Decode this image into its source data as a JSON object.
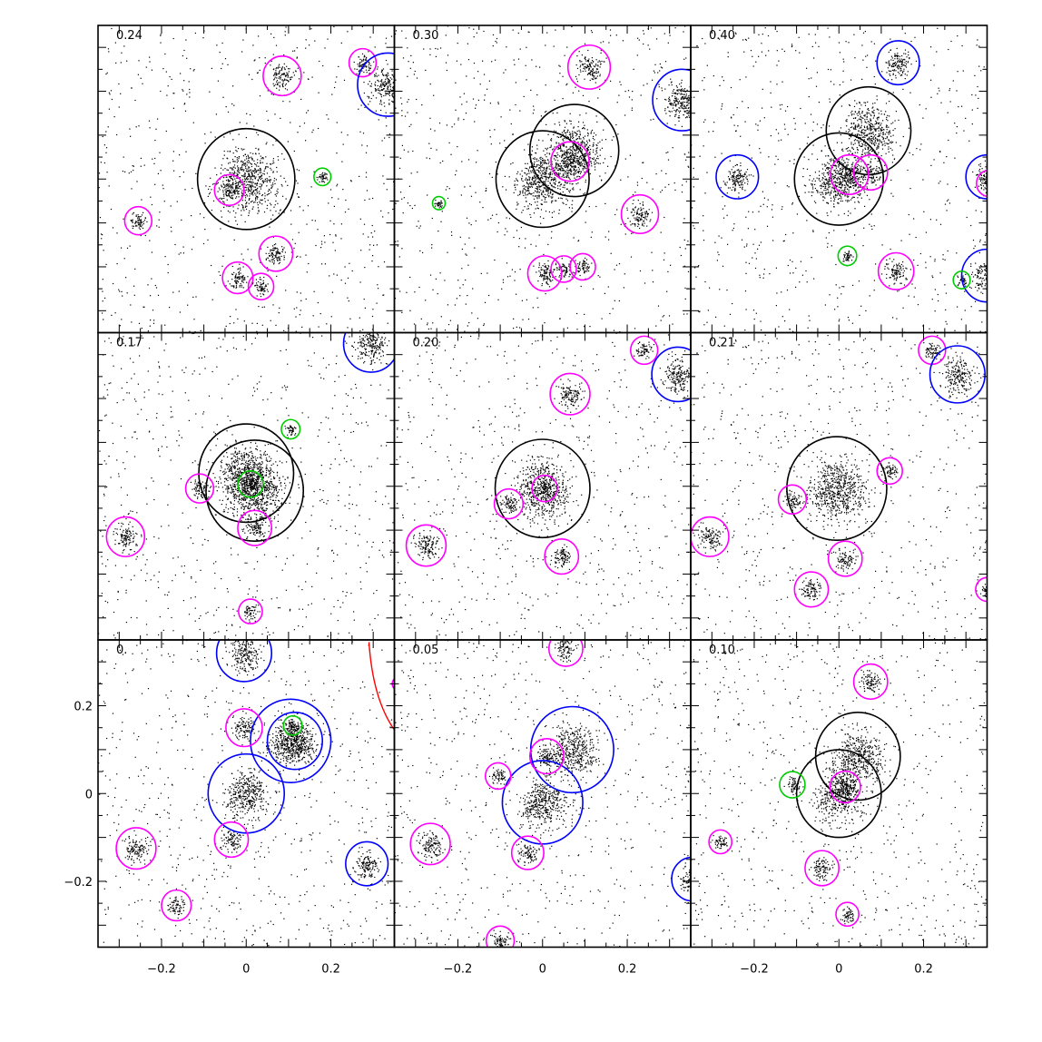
{
  "chart_data": {
    "type": "scatter",
    "layout": {
      "rows": 3,
      "cols": 3
    },
    "xlim": [
      -0.35,
      0.35
    ],
    "ylim": [
      -0.35,
      0.35
    ],
    "x_ticks": [
      -0.2,
      0,
      0.2
    ],
    "x_tick_labels": [
      "−0.2",
      "0",
      "0.2"
    ],
    "y_ticks": [
      -0.2,
      0,
      0.2
    ],
    "y_tick_labels": [
      "−0.2",
      "0",
      "0.2"
    ],
    "colors": {
      "black": "#000000",
      "magenta": "#ff00ff",
      "blue": "#0000ff",
      "green": "#00cc00",
      "red": "#ff0000"
    },
    "panels": [
      {
        "label": "0.24",
        "clumps": [
          {
            "x": 0,
            "y": 0,
            "r": 0.115,
            "color": "black"
          },
          {
            "x": -0.04,
            "y": -0.025,
            "r": 0.035,
            "color": "magenta"
          },
          {
            "x": 0.18,
            "y": 0.005,
            "r": 0.02,
            "color": "green"
          },
          {
            "x": 0.085,
            "y": 0.235,
            "r": 0.045,
            "color": "magenta"
          },
          {
            "x": 0.275,
            "y": 0.265,
            "r": 0.032,
            "color": "magenta"
          },
          {
            "x": 0.335,
            "y": 0.215,
            "r": 0.072,
            "color": "blue"
          },
          {
            "x": -0.255,
            "y": -0.095,
            "r": 0.032,
            "color": "magenta"
          },
          {
            "x": 0.07,
            "y": -0.17,
            "r": 0.04,
            "color": "magenta"
          },
          {
            "x": -0.02,
            "y": -0.225,
            "r": 0.036,
            "color": "magenta"
          },
          {
            "x": 0.035,
            "y": -0.245,
            "r": 0.03,
            "color": "magenta"
          }
        ]
      },
      {
        "label": "0.30",
        "clumps": [
          {
            "x": 0,
            "y": 0,
            "r": 0.11,
            "color": "black"
          },
          {
            "x": 0.075,
            "y": 0.065,
            "r": 0.105,
            "color": "black"
          },
          {
            "x": 0.065,
            "y": 0.04,
            "r": 0.045,
            "color": "magenta"
          },
          {
            "x": -0.245,
            "y": -0.055,
            "r": 0.015,
            "color": "green"
          },
          {
            "x": 0.11,
            "y": 0.255,
            "r": 0.05,
            "color": "magenta"
          },
          {
            "x": 0.33,
            "y": 0.18,
            "r": 0.07,
            "color": "blue"
          },
          {
            "x": 0.23,
            "y": -0.08,
            "r": 0.044,
            "color": "magenta"
          },
          {
            "x": 0.005,
            "y": -0.215,
            "r": 0.04,
            "color": "magenta"
          },
          {
            "x": 0.05,
            "y": -0.205,
            "r": 0.03,
            "color": "magenta"
          },
          {
            "x": 0.095,
            "y": -0.2,
            "r": 0.03,
            "color": "magenta"
          }
        ]
      },
      {
        "label": "0.40",
        "clumps": [
          {
            "x": 0,
            "y": 0,
            "r": 0.105,
            "color": "black"
          },
          {
            "x": 0.07,
            "y": 0.11,
            "r": 0.1,
            "color": "black"
          },
          {
            "x": 0.025,
            "y": 0.01,
            "r": 0.045,
            "color": "magenta"
          },
          {
            "x": 0.075,
            "y": 0.015,
            "r": 0.04,
            "color": "magenta"
          },
          {
            "x": 0.14,
            "y": 0.265,
            "r": 0.05,
            "color": "blue"
          },
          {
            "x": -0.24,
            "y": 0.005,
            "r": 0.05,
            "color": "blue"
          },
          {
            "x": 0.35,
            "y": 0.005,
            "r": 0.05,
            "color": "blue"
          },
          {
            "x": 0.35,
            "y": -0.22,
            "r": 0.06,
            "color": "blue"
          },
          {
            "x": 0.355,
            "y": -0.01,
            "r": 0.03,
            "color": "magenta"
          },
          {
            "x": 0.02,
            "y": -0.175,
            "r": 0.022,
            "color": "green"
          },
          {
            "x": 0.135,
            "y": -0.21,
            "r": 0.042,
            "color": "magenta"
          },
          {
            "x": 0.29,
            "y": -0.23,
            "r": 0.02,
            "color": "green"
          }
        ]
      },
      {
        "label": "0.17",
        "clumps": [
          {
            "x": 0,
            "y": 0.03,
            "r": 0.112,
            "color": "black"
          },
          {
            "x": 0.02,
            "y": -0.01,
            "r": 0.115,
            "color": "black"
          },
          {
            "x": 0.01,
            "y": 0.005,
            "r": 0.03,
            "color": "green"
          },
          {
            "x": -0.11,
            "y": -0.005,
            "r": 0.033,
            "color": "magenta"
          },
          {
            "x": 0.105,
            "y": 0.13,
            "r": 0.022,
            "color": "green"
          },
          {
            "x": 0.295,
            "y": 0.325,
            "r": 0.065,
            "color": "blue"
          },
          {
            "x": -0.285,
            "y": -0.115,
            "r": 0.045,
            "color": "magenta"
          },
          {
            "x": 0.02,
            "y": -0.095,
            "r": 0.04,
            "color": "magenta"
          },
          {
            "x": 0.01,
            "y": -0.285,
            "r": 0.028,
            "color": "magenta"
          }
        ]
      },
      {
        "label": "0.20",
        "clumps": [
          {
            "x": 0,
            "y": -0.005,
            "r": 0.112,
            "color": "black"
          },
          {
            "x": 0.005,
            "y": -0.005,
            "r": 0.03,
            "color": "magenta"
          },
          {
            "x": -0.08,
            "y": -0.04,
            "r": 0.034,
            "color": "magenta"
          },
          {
            "x": 0.065,
            "y": 0.21,
            "r": 0.047,
            "color": "magenta"
          },
          {
            "x": 0.24,
            "y": 0.31,
            "r": 0.032,
            "color": "magenta"
          },
          {
            "x": 0.32,
            "y": 0.255,
            "r": 0.062,
            "color": "blue"
          },
          {
            "x": -0.275,
            "y": -0.135,
            "r": 0.047,
            "color": "magenta"
          },
          {
            "x": 0.045,
            "y": -0.16,
            "r": 0.04,
            "color": "magenta"
          }
        ]
      },
      {
        "label": "0.21",
        "clumps": [
          {
            "x": -0.005,
            "y": -0.005,
            "r": 0.118,
            "color": "black"
          },
          {
            "x": -0.11,
            "y": -0.03,
            "r": 0.033,
            "color": "magenta"
          },
          {
            "x": 0.12,
            "y": 0.035,
            "r": 0.03,
            "color": "magenta"
          },
          {
            "x": 0.22,
            "y": 0.31,
            "r": 0.032,
            "color": "magenta"
          },
          {
            "x": 0.28,
            "y": 0.255,
            "r": 0.065,
            "color": "blue"
          },
          {
            "x": -0.305,
            "y": -0.115,
            "r": 0.045,
            "color": "magenta"
          },
          {
            "x": 0.015,
            "y": -0.165,
            "r": 0.04,
            "color": "magenta"
          },
          {
            "x": -0.065,
            "y": -0.235,
            "r": 0.04,
            "color": "magenta"
          },
          {
            "x": 0.35,
            "y": -0.235,
            "r": 0.027,
            "color": "magenta"
          }
        ]
      },
      {
        "label": "0.",
        "clumps": [
          {
            "x": 0,
            "y": 0,
            "r": 0.09,
            "color": "blue"
          },
          {
            "x": 0.105,
            "y": 0.12,
            "r": 0.095,
            "color": "blue"
          },
          {
            "x": 0.115,
            "y": 0.12,
            "r": 0.065,
            "color": "blue"
          },
          {
            "x": 0.11,
            "y": 0.155,
            "r": 0.022,
            "color": "green"
          },
          {
            "x": -0.005,
            "y": 0.15,
            "r": 0.043,
            "color": "magenta"
          },
          {
            "x": -0.005,
            "y": 0.32,
            "r": 0.065,
            "color": "blue"
          },
          {
            "x": -0.035,
            "y": -0.105,
            "r": 0.04,
            "color": "magenta"
          },
          {
            "x": -0.26,
            "y": -0.125,
            "r": 0.047,
            "color": "magenta"
          },
          {
            "x": -0.165,
            "y": -0.255,
            "r": 0.035,
            "color": "magenta"
          },
          {
            "x": 0.285,
            "y": -0.16,
            "r": 0.05,
            "color": "blue"
          },
          {
            "x": 0.36,
            "y": 0.25,
            "r": 0.015,
            "color": "magenta"
          }
        ],
        "arc": {
          "color": "red",
          "x1": 0.29,
          "y1": 0.345,
          "x2": 0.35,
          "y2": 0.145
        }
      },
      {
        "label": "0.05",
        "clumps": [
          {
            "x": 0,
            "y": -0.02,
            "r": 0.095,
            "color": "blue"
          },
          {
            "x": 0.07,
            "y": 0.1,
            "r": 0.098,
            "color": "blue"
          },
          {
            "x": 0.01,
            "y": 0.085,
            "r": 0.04,
            "color": "magenta"
          },
          {
            "x": -0.105,
            "y": 0.04,
            "r": 0.03,
            "color": "magenta"
          },
          {
            "x": 0.055,
            "y": 0.33,
            "r": 0.04,
            "color": "magenta"
          },
          {
            "x": -0.265,
            "y": -0.115,
            "r": 0.047,
            "color": "magenta"
          },
          {
            "x": -0.035,
            "y": -0.135,
            "r": 0.038,
            "color": "magenta"
          },
          {
            "x": -0.1,
            "y": -0.335,
            "r": 0.033,
            "color": "magenta"
          },
          {
            "x": 0.355,
            "y": -0.195,
            "r": 0.05,
            "color": "blue"
          }
        ]
      },
      {
        "label": "0.10",
        "clumps": [
          {
            "x": 0,
            "y": 0,
            "r": 0.1,
            "color": "black"
          },
          {
            "x": 0.045,
            "y": 0.085,
            "r": 0.1,
            "color": "black"
          },
          {
            "x": 0.015,
            "y": 0.015,
            "r": 0.036,
            "color": "magenta"
          },
          {
            "x": -0.11,
            "y": 0.02,
            "r": 0.03,
            "color": "green"
          },
          {
            "x": 0.075,
            "y": 0.255,
            "r": 0.04,
            "color": "magenta"
          },
          {
            "x": -0.28,
            "y": -0.11,
            "r": 0.027,
            "color": "magenta"
          },
          {
            "x": -0.04,
            "y": -0.17,
            "r": 0.04,
            "color": "magenta"
          },
          {
            "x": 0.02,
            "y": -0.275,
            "r": 0.027,
            "color": "magenta"
          }
        ]
      }
    ]
  }
}
